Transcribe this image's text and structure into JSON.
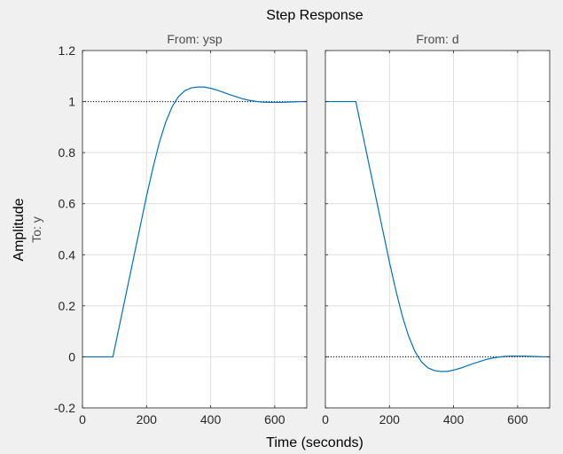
{
  "chart_data": {
    "type": "line",
    "title": "Step Response",
    "xlabel": "Time (seconds)",
    "ylabel": "Amplitude",
    "ylabel_sub": "To: y",
    "xlim": [
      0,
      700
    ],
    "ylim": [
      -0.2,
      1.2
    ],
    "xticks": [
      0,
      200,
      400,
      600
    ],
    "yticks": [
      -0.2,
      0,
      0.2,
      0.4,
      0.6,
      0.8,
      1,
      1.2
    ],
    "ytick_labels": [
      "-0.2",
      "0",
      "0.2",
      "0.4",
      "0.6",
      "0.8",
      "1",
      "1.2"
    ],
    "grid": true,
    "line_color": "#0072bd",
    "reference_color": "#000000",
    "panels": [
      {
        "subtitle": "From: ysp",
        "reference": 1,
        "x": [
          0,
          95,
          110,
          125,
          140,
          160,
          180,
          200,
          220,
          240,
          260,
          280,
          300,
          320,
          340,
          360,
          380,
          400,
          420,
          440,
          460,
          480,
          500,
          520,
          540,
          560,
          580,
          600,
          620,
          640,
          660,
          680,
          700
        ],
        "values": [
          0,
          0,
          0.09,
          0.18,
          0.27,
          0.39,
          0.51,
          0.63,
          0.74,
          0.84,
          0.92,
          0.98,
          1.02,
          1.043,
          1.054,
          1.057,
          1.057,
          1.052,
          1.045,
          1.036,
          1.027,
          1.019,
          1.011,
          1.005,
          1.001,
          0.998,
          0.997,
          0.997,
          0.997,
          0.998,
          0.999,
          1.0,
          1.0
        ]
      },
      {
        "subtitle": "From: d",
        "reference": 0,
        "x": [
          0,
          95,
          110,
          125,
          140,
          160,
          180,
          200,
          220,
          240,
          260,
          280,
          300,
          320,
          340,
          360,
          380,
          400,
          420,
          440,
          460,
          480,
          500,
          520,
          540,
          560,
          580,
          600,
          620,
          640,
          660,
          680,
          700
        ],
        "values": [
          1,
          1,
          0.91,
          0.82,
          0.73,
          0.61,
          0.49,
          0.37,
          0.26,
          0.16,
          0.08,
          0.02,
          -0.02,
          -0.043,
          -0.054,
          -0.057,
          -0.057,
          -0.052,
          -0.045,
          -0.036,
          -0.027,
          -0.019,
          -0.011,
          -0.005,
          -0.001,
          0.002,
          0.003,
          0.003,
          0.003,
          0.002,
          0.001,
          0.0,
          0.0
        ]
      }
    ]
  }
}
